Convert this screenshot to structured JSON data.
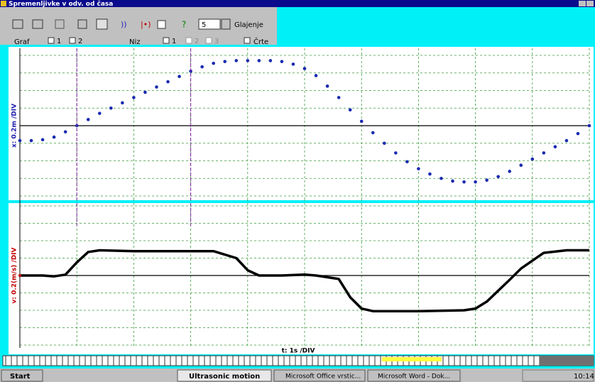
{
  "window": {
    "title": "Spremenljivke v odv. od časa"
  },
  "toolbar": {
    "smoothing": 5,
    "smoothing_label": "Glajenje",
    "graph_label": "Graf",
    "graph_options": [
      "1",
      "2"
    ],
    "series_label": "Niz",
    "series_options": [
      "1",
      "2",
      "3"
    ],
    "lines_label": "Črte"
  },
  "charts": [
    {
      "type": "scatter",
      "y_label": "x: 0.2m /DIV",
      "label_color": "#1a1aa8",
      "color": "#1a2ab0",
      "t": [
        0,
        0.2,
        0.4,
        0.6,
        0.8,
        1,
        1.2,
        1.4,
        1.6,
        1.8,
        2,
        2.2,
        2.4,
        2.6,
        2.8,
        3,
        3.2,
        3.4,
        3.6,
        3.8,
        4,
        4.2,
        4.4,
        4.6,
        4.8,
        5,
        5.2,
        5.4,
        5.6,
        5.8,
        6,
        6.2,
        6.4,
        6.6,
        6.8,
        7,
        7.2,
        7.4,
        7.6,
        7.8,
        8,
        8.2,
        8.4,
        8.6,
        8.8,
        9,
        9.2,
        9.4,
        9.6,
        9.8,
        10
      ],
      "values": [
        -0.17,
        -0.17,
        -0.16,
        -0.13,
        -0.07,
        0,
        0.07,
        0.14,
        0.2,
        0.26,
        0.32,
        0.38,
        0.44,
        0.5,
        0.56,
        0.62,
        0.67,
        0.71,
        0.73,
        0.74,
        0.74,
        0.74,
        0.74,
        0.73,
        0.7,
        0.65,
        0.57,
        0.45,
        0.32,
        0.18,
        0.05,
        -0.08,
        -0.2,
        -0.31,
        -0.41,
        -0.49,
        -0.55,
        -0.6,
        -0.63,
        -0.64,
        -0.64,
        -0.62,
        -0.58,
        -0.52,
        -0.45,
        -0.38,
        -0.31,
        -0.24,
        -0.17,
        -0.09,
        0
      ],
      "xlim": [
        0,
        10
      ],
      "xticks": [
        0,
        1,
        2,
        3,
        4,
        5,
        6,
        7,
        8,
        9,
        10
      ],
      "ylim": [
        -0.8,
        0.8
      ],
      "yticks": [
        -0.8,
        -0.6,
        -0.4,
        -0.2,
        0,
        0.2,
        0.4,
        0.6,
        0.8
      ]
    },
    {
      "type": "line",
      "y_label": "v: 0.2(m/s) /DIV",
      "label_color": "#c00000",
      "color": "#000000",
      "t": [
        0,
        0.4,
        0.6,
        0.8,
        1,
        1.2,
        1.4,
        2,
        3,
        3.4,
        3.8,
        4,
        4.2,
        4.6,
        5,
        5.2,
        5.6,
        5.8,
        6,
        6.2,
        7,
        7.8,
        8,
        8.2,
        8.6,
        8.8,
        9.2,
        9.6,
        10
      ],
      "values": [
        0,
        0,
        -0.01,
        0.01,
        0.15,
        0.27,
        0.29,
        0.28,
        0.28,
        0.28,
        0.2,
        0.06,
        0,
        0,
        0.01,
        0,
        -0.04,
        -0.25,
        -0.38,
        -0.41,
        -0.41,
        -0.4,
        -0.38,
        -0.3,
        -0.05,
        0.08,
        0.26,
        0.29,
        0.29
      ],
      "xlim": [
        0,
        10
      ],
      "xticks": [
        0,
        1,
        2,
        3,
        4,
        5,
        6,
        7,
        8,
        9,
        10
      ],
      "ylim": [
        -0.8,
        0.8
      ],
      "yticks": [
        -0.8,
        -0.6,
        -0.4,
        -0.2,
        0,
        0.2,
        0.4,
        0.6,
        0.8
      ]
    }
  ],
  "cursors": [
    1,
    3
  ],
  "x_axis_label": "t: 1s /DIV",
  "taskbar": {
    "start": "Start",
    "tasks": [
      "Ultrasonic motion",
      "Microsoft Office vrstic...",
      "Microsoft Word - Dok..."
    ],
    "clock": "10:14"
  }
}
